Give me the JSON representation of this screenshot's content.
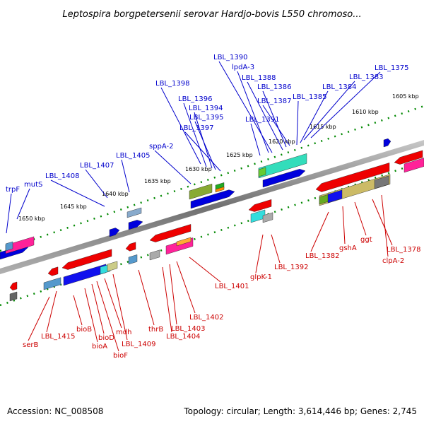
{
  "title": "Leptospira borgpetersenii serovar Hardjo-bovis L550 chromoso...",
  "footer": {
    "accession": "Accession: NC_008508",
    "topology": "Topology: circular; Length: 3,614,446 bp; Genes: 2,745"
  },
  "scale_labels": [
    "1605 kbp",
    "1610 kbp",
    "1615 kbp",
    "1620 kbp",
    "1625 kbp",
    "1630 kbp",
    "1635 kbp",
    "1640 kbp",
    "1645 kbp",
    "1650 kbp"
  ],
  "top_genes": [
    "trpF",
    "mutS",
    "LBL_1408",
    "LBL_1407",
    "LBL_1405",
    "sppA-2",
    "LBL_1398",
    "LBL_1396",
    "LBL_1394",
    "LBL_1395",
    "LBL_1397",
    "LBL_1391",
    "LBL_1390",
    "lpdA-3",
    "LBL_1388",
    "LBL_1386",
    "LBL_1387",
    "LBL_1385",
    "LBL_1384",
    "LBL_1383",
    "LBL_1375"
  ],
  "bottom_genes": [
    "serB",
    "LBL_1415",
    "bioB",
    "bioA",
    "bioD",
    "bioF",
    "mdh",
    "LBL_1409",
    "thrB",
    "LBL_1404",
    "LBL_1403",
    "LBL_1402",
    "LBL_1401",
    "glpK-1",
    "LBL_1392",
    "LBL_1382",
    "gshA",
    "ggt",
    "LBL_1378",
    "clpA-2"
  ],
  "colors": {
    "forward_label": "#0000cc",
    "reverse_label": "#cc0000",
    "forward_gene": "#0000dd",
    "reverse_gene": "#ee0000",
    "backbone": "#808080",
    "tick": "#008800"
  }
}
